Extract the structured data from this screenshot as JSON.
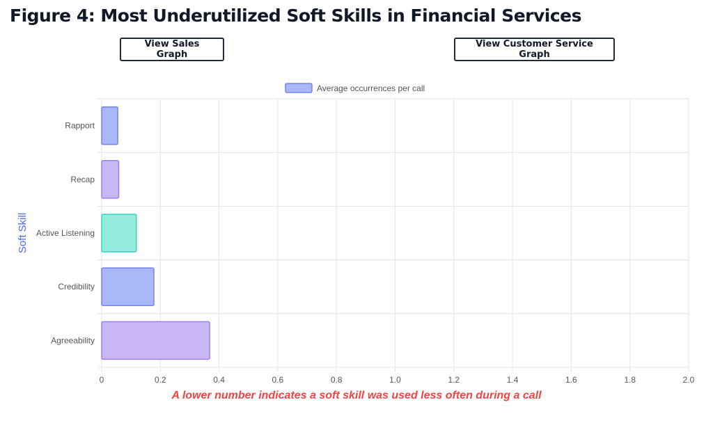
{
  "figure_title": "Figure 4: Most Underutilized Soft Skills in Financial Services",
  "buttons": {
    "sales": "View Sales Graph",
    "customer_service": "View Customer Service Graph"
  },
  "note": "A lower number indicates a soft skill was used less often during a call",
  "chart_data": {
    "type": "bar",
    "orientation": "horizontal",
    "categories": [
      "Rapport",
      "Recap",
      "Active Listening",
      "Credibility",
      "Agreeability"
    ],
    "series": [
      {
        "name": "Average occurrences per call",
        "values": [
          0.055,
          0.058,
          0.118,
          0.178,
          0.368
        ]
      }
    ],
    "bar_colors": [
      "#aab7f8",
      "#c9b6f5",
      "#93ecdd",
      "#aab7f8",
      "#c9b6f5"
    ],
    "bar_borders": [
      "#7484ee",
      "#9b7ff0",
      "#34d2be",
      "#7484ee",
      "#9b7ff0"
    ],
    "legend_swatch_color": "#aab7f8",
    "legend_swatch_border": "#7484ee",
    "title": "",
    "xlabel": "",
    "ylabel": "Soft Skill",
    "ylabel_color": "#4f6bed",
    "xlim": [
      0,
      2.0
    ],
    "xticks": [
      "0",
      "0.2",
      "0.4",
      "0.6",
      "0.8",
      "1.0",
      "1.2",
      "1.4",
      "1.6",
      "1.8",
      "2.0"
    ],
    "grid": true,
    "legend_position": "top-center"
  }
}
